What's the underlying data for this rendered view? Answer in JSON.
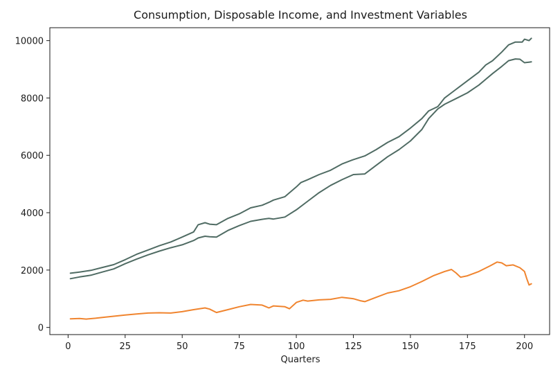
{
  "chart_data": {
    "type": "line",
    "title": "Consumption, Disposable Income, and Investment Variables",
    "xlabel": "Quarters",
    "ylabel": "",
    "xlim": [
      -8,
      211
    ],
    "ylim": [
      -250,
      10450
    ],
    "x_ticks": [
      0,
      25,
      50,
      75,
      100,
      125,
      150,
      175,
      200
    ],
    "y_ticks": [
      0,
      2000,
      4000,
      6000,
      8000,
      10000
    ],
    "grid": false,
    "legend": "none",
    "series": [
      {
        "color": "#4f6b63",
        "points": [
          [
            1,
            1890
          ],
          [
            5,
            1930
          ],
          [
            10,
            1990
          ],
          [
            15,
            2090
          ],
          [
            20,
            2190
          ],
          [
            25,
            2360
          ],
          [
            30,
            2550
          ],
          [
            35,
            2700
          ],
          [
            40,
            2850
          ],
          [
            45,
            2980
          ],
          [
            50,
            3150
          ],
          [
            55,
            3330
          ],
          [
            57,
            3580
          ],
          [
            60,
            3650
          ],
          [
            62,
            3600
          ],
          [
            65,
            3580
          ],
          [
            70,
            3800
          ],
          [
            75,
            3960
          ],
          [
            80,
            4170
          ],
          [
            85,
            4260
          ],
          [
            88,
            4360
          ],
          [
            90,
            4440
          ],
          [
            95,
            4560
          ],
          [
            100,
            4900
          ],
          [
            102,
            5050
          ],
          [
            105,
            5150
          ],
          [
            110,
            5330
          ],
          [
            115,
            5480
          ],
          [
            120,
            5700
          ],
          [
            125,
            5850
          ],
          [
            130,
            5980
          ],
          [
            135,
            6200
          ],
          [
            140,
            6450
          ],
          [
            145,
            6650
          ],
          [
            150,
            6950
          ],
          [
            155,
            7280
          ],
          [
            158,
            7550
          ],
          [
            162,
            7700
          ],
          [
            165,
            8000
          ],
          [
            170,
            8300
          ],
          [
            175,
            8600
          ],
          [
            180,
            8900
          ],
          [
            183,
            9150
          ],
          [
            186,
            9300
          ],
          [
            190,
            9600
          ],
          [
            193,
            9850
          ],
          [
            196,
            9950
          ],
          [
            199,
            9950
          ],
          [
            200,
            10050
          ],
          [
            202,
            10000
          ],
          [
            203,
            10080
          ]
        ]
      },
      {
        "color": "#4f6b63",
        "points": [
          [
            1,
            1700
          ],
          [
            5,
            1760
          ],
          [
            10,
            1820
          ],
          [
            15,
            1930
          ],
          [
            20,
            2040
          ],
          [
            25,
            2220
          ],
          [
            30,
            2380
          ],
          [
            35,
            2530
          ],
          [
            40,
            2660
          ],
          [
            45,
            2780
          ],
          [
            50,
            2880
          ],
          [
            55,
            3030
          ],
          [
            57,
            3120
          ],
          [
            60,
            3180
          ],
          [
            62,
            3160
          ],
          [
            65,
            3150
          ],
          [
            70,
            3380
          ],
          [
            75,
            3550
          ],
          [
            80,
            3700
          ],
          [
            85,
            3770
          ],
          [
            88,
            3800
          ],
          [
            90,
            3780
          ],
          [
            95,
            3850
          ],
          [
            100,
            4100
          ],
          [
            105,
            4400
          ],
          [
            110,
            4700
          ],
          [
            115,
            4950
          ],
          [
            120,
            5150
          ],
          [
            125,
            5330
          ],
          [
            130,
            5350
          ],
          [
            135,
            5650
          ],
          [
            140,
            5950
          ],
          [
            145,
            6200
          ],
          [
            150,
            6500
          ],
          [
            155,
            6900
          ],
          [
            158,
            7280
          ],
          [
            162,
            7620
          ],
          [
            165,
            7780
          ],
          [
            170,
            7980
          ],
          [
            175,
            8180
          ],
          [
            180,
            8450
          ],
          [
            183,
            8650
          ],
          [
            186,
            8850
          ],
          [
            190,
            9100
          ],
          [
            193,
            9300
          ],
          [
            196,
            9360
          ],
          [
            198,
            9350
          ],
          [
            200,
            9230
          ],
          [
            202,
            9250
          ],
          [
            203,
            9260
          ]
        ]
      },
      {
        "color": "#f0842e",
        "points": [
          [
            1,
            300
          ],
          [
            5,
            310
          ],
          [
            8,
            290
          ],
          [
            12,
            320
          ],
          [
            15,
            350
          ],
          [
            20,
            390
          ],
          [
            25,
            430
          ],
          [
            30,
            470
          ],
          [
            35,
            500
          ],
          [
            40,
            510
          ],
          [
            45,
            500
          ],
          [
            50,
            550
          ],
          [
            55,
            620
          ],
          [
            60,
            680
          ],
          [
            62,
            640
          ],
          [
            65,
            520
          ],
          [
            70,
            620
          ],
          [
            75,
            720
          ],
          [
            80,
            800
          ],
          [
            85,
            780
          ],
          [
            88,
            680
          ],
          [
            90,
            750
          ],
          [
            95,
            720
          ],
          [
            97,
            650
          ],
          [
            100,
            870
          ],
          [
            103,
            950
          ],
          [
            105,
            920
          ],
          [
            110,
            960
          ],
          [
            115,
            980
          ],
          [
            120,
            1050
          ],
          [
            125,
            1000
          ],
          [
            128,
            930
          ],
          [
            130,
            900
          ],
          [
            135,
            1050
          ],
          [
            140,
            1200
          ],
          [
            145,
            1280
          ],
          [
            150,
            1420
          ],
          [
            155,
            1600
          ],
          [
            160,
            1800
          ],
          [
            165,
            1950
          ],
          [
            168,
            2020
          ],
          [
            170,
            1900
          ],
          [
            172,
            1750
          ],
          [
            175,
            1800
          ],
          [
            180,
            1950
          ],
          [
            185,
            2150
          ],
          [
            188,
            2280
          ],
          [
            190,
            2250
          ],
          [
            192,
            2150
          ],
          [
            195,
            2180
          ],
          [
            198,
            2080
          ],
          [
            200,
            1950
          ],
          [
            201,
            1700
          ],
          [
            202,
            1480
          ],
          [
            203,
            1520
          ]
        ]
      }
    ]
  }
}
